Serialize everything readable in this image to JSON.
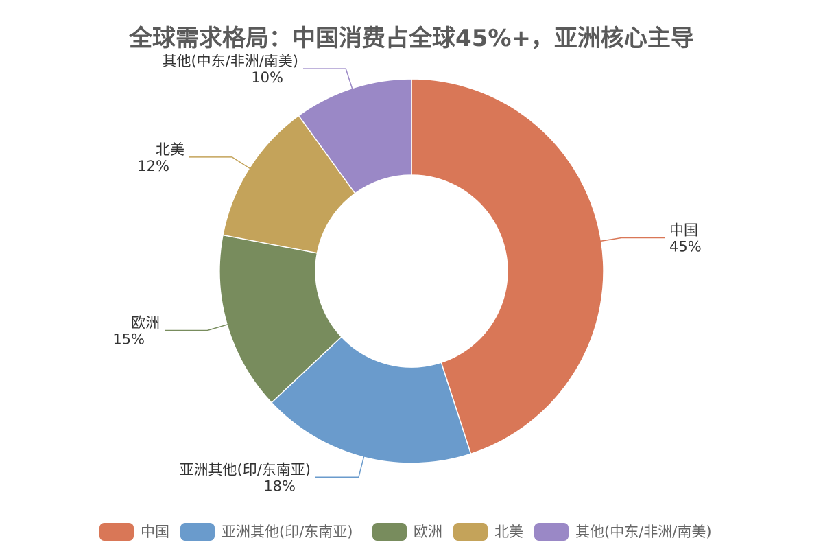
{
  "chart_data": {
    "type": "pie",
    "variant": "donut",
    "title": "全球需求格局：中国消费占全球45%+，亚洲核心主导",
    "legend_position": "bottom",
    "categories": [
      "中国",
      "亚洲其他(印/东南亚)",
      "欧洲",
      "北美",
      "其他(中东/非洲/南美)"
    ],
    "values": [
      45,
      18,
      15,
      12,
      10
    ],
    "value_labels": [
      "45%",
      "18%",
      "15%",
      "12%",
      "10%"
    ],
    "colors": [
      "#d97757",
      "#6a9bcc",
      "#788c5d",
      "#c4a35a",
      "#9a88c6"
    ],
    "legend": [
      "中国",
      "亚洲其他(印/东南亚)",
      "欧洲",
      "北美",
      "其他(中东/非洲/南美)"
    ]
  }
}
